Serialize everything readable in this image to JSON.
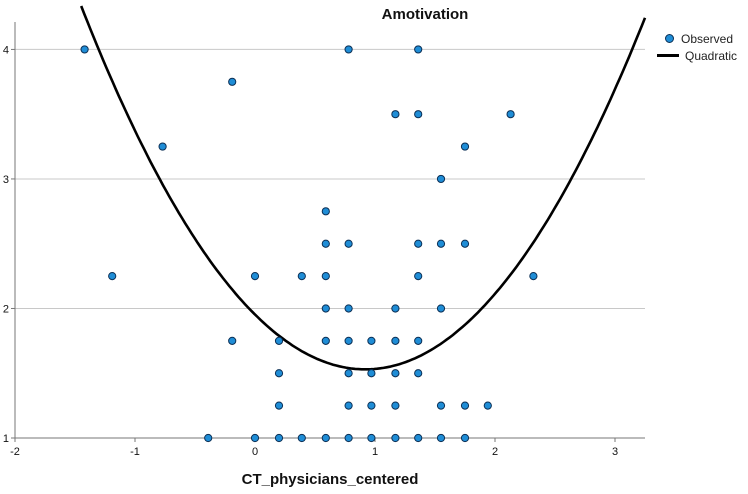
{
  "chart_data": {
    "type": "scatter",
    "title": "Amotivation",
    "xlabel": "CT_physicians_centered",
    "ylabel": "",
    "xlim": [
      -2,
      3.25
    ],
    "ylim": [
      1,
      4.15
    ],
    "x_ticks": [
      "-2",
      "-1",
      "0",
      "1",
      "2",
      "3"
    ],
    "y_ticks": [
      "1",
      "2",
      "3",
      "4"
    ],
    "legend": {
      "placement": "top-right",
      "observed": "Observed",
      "quadratic": "Quadratic"
    },
    "colors": {
      "point_fill": "#1f8dd6",
      "point_stroke": "#0b2f55",
      "curve": "#000000",
      "grid": "#c8c8c8"
    },
    "series": [
      {
        "name": "Observed",
        "points": [
          [
            -1.42,
            4.0
          ],
          [
            0.78,
            4.0
          ],
          [
            1.36,
            4.0
          ],
          [
            -0.19,
            3.75
          ],
          [
            1.17,
            3.5
          ],
          [
            1.36,
            3.5
          ],
          [
            2.13,
            3.5
          ],
          [
            -0.77,
            3.25
          ],
          [
            1.75,
            3.25
          ],
          [
            1.55,
            3.0
          ],
          [
            0.59,
            2.75
          ],
          [
            0.59,
            2.5
          ],
          [
            0.78,
            2.5
          ],
          [
            1.36,
            2.5
          ],
          [
            1.55,
            2.5
          ],
          [
            1.75,
            2.5
          ],
          [
            -1.19,
            2.25
          ],
          [
            0.0,
            2.25
          ],
          [
            0.39,
            2.25
          ],
          [
            0.59,
            2.25
          ],
          [
            1.36,
            2.25
          ],
          [
            2.32,
            2.25
          ],
          [
            0.59,
            2.0
          ],
          [
            0.78,
            2.0
          ],
          [
            1.17,
            2.0
          ],
          [
            1.55,
            2.0
          ],
          [
            -0.19,
            1.75
          ],
          [
            0.2,
            1.75
          ],
          [
            0.59,
            1.75
          ],
          [
            0.78,
            1.75
          ],
          [
            0.97,
            1.75
          ],
          [
            1.17,
            1.75
          ],
          [
            1.36,
            1.75
          ],
          [
            0.2,
            1.5
          ],
          [
            0.78,
            1.5
          ],
          [
            0.97,
            1.5
          ],
          [
            1.17,
            1.5
          ],
          [
            1.36,
            1.5
          ],
          [
            0.2,
            1.25
          ],
          [
            0.78,
            1.25
          ],
          [
            0.97,
            1.25
          ],
          [
            1.17,
            1.25
          ],
          [
            1.55,
            1.25
          ],
          [
            1.75,
            1.25
          ],
          [
            1.94,
            1.25
          ],
          [
            -0.39,
            1.0
          ],
          [
            0.0,
            1.0
          ],
          [
            0.2,
            1.0
          ],
          [
            0.39,
            1.0
          ],
          [
            0.59,
            1.0
          ],
          [
            0.78,
            1.0
          ],
          [
            0.97,
            1.0
          ],
          [
            1.17,
            1.0
          ],
          [
            1.36,
            1.0
          ],
          [
            1.55,
            1.0
          ],
          [
            1.75,
            1.0
          ]
        ]
      },
      {
        "name": "Quadratic",
        "equation": {
          "a": 0.5,
          "vertex_x": 0.92,
          "vertex_y": 1.53
        }
      }
    ]
  }
}
